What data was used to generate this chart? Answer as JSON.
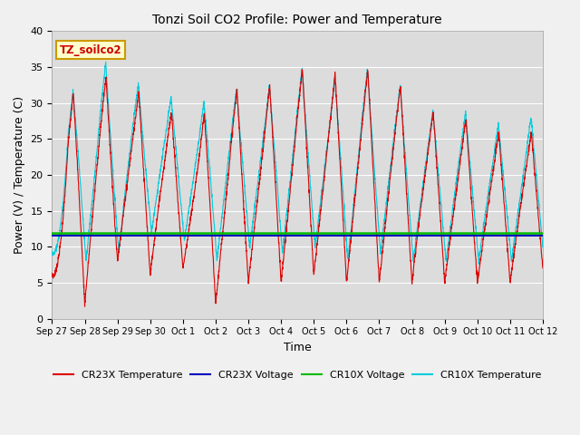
{
  "title": "Tonzi Soil CO2 Profile: Power and Temperature",
  "xlabel": "Time",
  "ylabel": "Power (V) / Temperature (C)",
  "ylim": [
    0,
    40
  ],
  "annotation": "TZ_soilco2",
  "cr23x_voltage_value": 11.55,
  "cr10x_voltage_value": 11.85,
  "x_tick_labels": [
    "Sep 27",
    "Sep 28",
    "Sep 29",
    "Sep 30",
    "Oct 1",
    "Oct 2",
    "Oct 3",
    "Oct 4",
    "Oct 5",
    "Oct 6",
    "Oct 7",
    "Oct 8",
    "Oct 9",
    "Oct 10",
    "Oct 11",
    "Oct 12"
  ],
  "cr23x_temp_color": "#dd0000",
  "cr23x_voltage_color": "#0000bb",
  "cr10x_voltage_color": "#00bb00",
  "cr10x_temp_color": "#00ccdd",
  "fig_width": 6.4,
  "fig_height": 4.8,
  "dpi": 100
}
